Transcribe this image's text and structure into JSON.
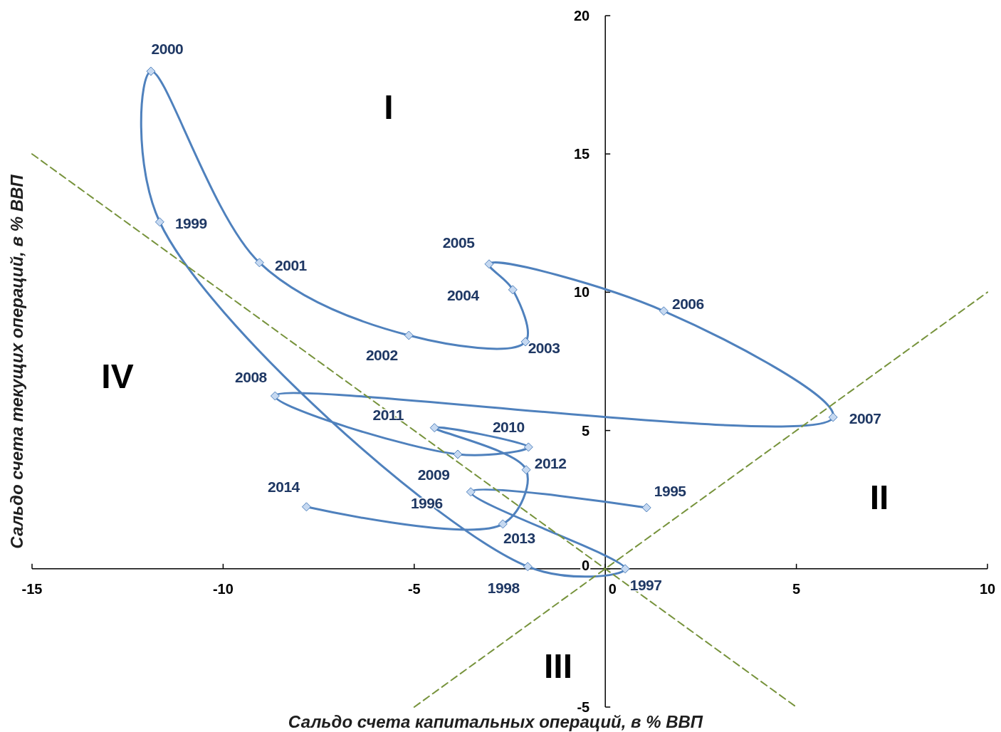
{
  "chart_data": {
    "type": "line",
    "xlabel": "Сальдо счета капитальных операций, в % ВВП",
    "ylabel": "Сальдо счета текущих операций, в % ВВП",
    "xlim": [
      -15,
      10
    ],
    "xticks": [
      -15,
      -10,
      -5,
      0,
      5,
      10
    ],
    "ylim": [
      -5,
      20
    ],
    "yticks": [
      -5,
      0,
      5,
      10,
      15,
      20
    ],
    "annotations": [
      "I",
      "II",
      "III",
      "IV",
      {
        "text": "1995",
        "x": 1.08,
        "y": 2.21
      },
      {
        "text": "1996",
        "x": -3.52,
        "y": 2.78
      },
      {
        "text": "1997",
        "x": 0.52,
        "y": 0.0
      },
      {
        "text": "1998",
        "x": -2.03,
        "y": 0.08
      },
      {
        "text": "1999",
        "x": -11.66,
        "y": 12.54
      },
      {
        "text": "2000",
        "x": -11.89,
        "y": 17.99
      },
      {
        "text": "2001",
        "x": -9.05,
        "y": 11.07
      },
      {
        "text": "2002",
        "x": -5.14,
        "y": 8.44
      },
      {
        "text": "2003",
        "x": -2.09,
        "y": 8.21
      },
      {
        "text": "2004",
        "x": -2.42,
        "y": 10.09
      },
      {
        "text": "2005",
        "x": -3.04,
        "y": 11.02
      },
      {
        "text": "2006",
        "x": 1.53,
        "y": 9.32
      },
      {
        "text": "2007",
        "x": 5.96,
        "y": 5.48
      },
      {
        "text": "2008",
        "x": -8.64,
        "y": 6.25
      },
      {
        "text": "2009",
        "x": -3.86,
        "y": 4.14
      },
      {
        "text": "2010",
        "x": -2.01,
        "y": 4.4
      },
      {
        "text": "2011",
        "x": -4.47,
        "y": 5.1
      },
      {
        "text": "2012",
        "x": -2.07,
        "y": 3.58
      },
      {
        "text": "2013",
        "x": -2.68,
        "y": 1.62
      },
      {
        "text": "2014",
        "x": -7.82,
        "y": 2.24
      }
    ],
    "series": [
      {
        "type": "line",
        "color": "#4f81bd",
        "marker": "diamond",
        "line_style": "solid",
        "x": [
          1.08,
          -3.52,
          0.52,
          -2.03,
          -11.66,
          -11.89,
          -9.05,
          -5.14,
          -2.09,
          -2.42,
          -3.04,
          1.53,
          5.96,
          -8.64,
          -3.86,
          -2.01,
          -4.47,
          -2.07,
          -2.68,
          -7.82
        ],
        "values": [
          2.21,
          2.78,
          0.0,
          0.08,
          12.54,
          17.99,
          11.07,
          8.44,
          8.21,
          10.09,
          11.02,
          9.32,
          5.48,
          6.25,
          4.14,
          4.4,
          5.1,
          3.58,
          1.62,
          2.24
        ]
      },
      {
        "type": "line",
        "color": "#77933c",
        "marker": "none",
        "line_style": "dashed",
        "x": [
          -15,
          5
        ],
        "values": [
          15,
          -5
        ]
      },
      {
        "type": "line",
        "color": "#77933c",
        "marker": "none",
        "line_style": "dashed",
        "x": [
          -5,
          10
        ],
        "values": [
          -5,
          10
        ]
      }
    ]
  }
}
